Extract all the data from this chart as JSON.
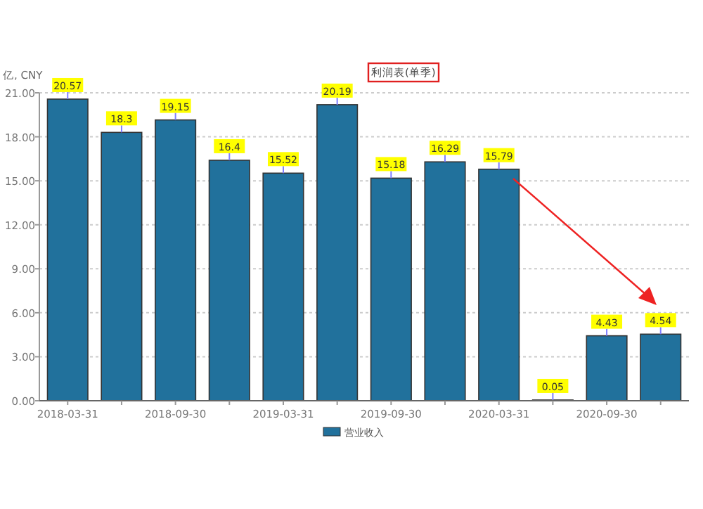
{
  "chart_data": {
    "type": "bar",
    "title": "利润表(单季)",
    "ylabel": "亿, CNY",
    "categories": [
      "2018-03-31",
      null,
      "2018-09-30",
      null,
      "2019-03-31",
      null,
      "2019-09-30",
      null,
      "2020-03-31",
      null,
      "2020-09-30",
      null
    ],
    "series": [
      {
        "name": "营业收入",
        "color": "#21719c",
        "values": [
          20.57,
          18.3,
          19.15,
          16.4,
          15.52,
          20.19,
          15.18,
          16.29,
          15.79,
          0.05,
          4.43,
          4.54
        ]
      }
    ],
    "ylim": [
      0,
      21
    ],
    "yticks": [
      {
        "value": 0,
        "label": "0.00"
      },
      {
        "value": 3,
        "label": "3.00"
      },
      {
        "value": 6,
        "label": "6.00"
      },
      {
        "value": 9,
        "label": "9.00"
      },
      {
        "value": 12,
        "label": "12.00"
      },
      {
        "value": 15,
        "label": "15.00"
      },
      {
        "value": 18,
        "label": "18.00"
      },
      {
        "value": 21,
        "label": "21.00"
      }
    ],
    "grid": "y",
    "legend": "bottom",
    "data_labels": true
  }
}
